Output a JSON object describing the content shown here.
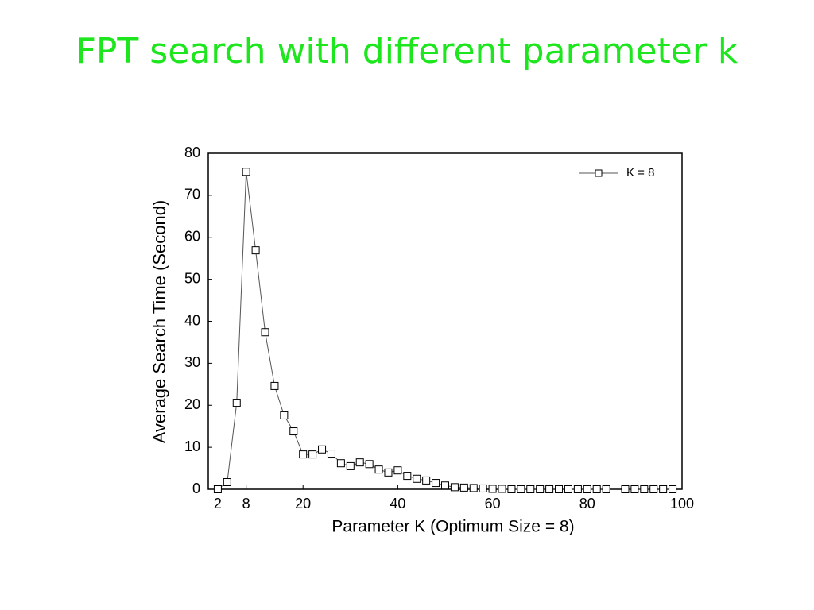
{
  "chart_data": {
    "type": "line",
    "title": "FPT search with different parameter k",
    "xlabel": "Parameter K (Optimum Size = 8)",
    "ylabel": "Average Search Time (Second)",
    "x": [
      2,
      4,
      6,
      8,
      10,
      12,
      14,
      16,
      18,
      20,
      22,
      24,
      26,
      28,
      30,
      32,
      34,
      36,
      38,
      40,
      42,
      44,
      46,
      48,
      50,
      52,
      54,
      56,
      58,
      60,
      62,
      64,
      66,
      68,
      70,
      72,
      74,
      76,
      78,
      80,
      82,
      84,
      86,
      88,
      90,
      92,
      94,
      96,
      98
    ],
    "series": [
      {
        "name": "K = 8",
        "color": "#000000",
        "values": [
          0,
          1.7,
          20.6,
          75.6,
          56.9,
          37.4,
          24.6,
          17.6,
          13.8,
          8.3,
          8.3,
          9.5,
          8.5,
          6.2,
          5.5,
          6.4,
          6.0,
          4.7,
          4.0,
          4.5,
          3.2,
          2.5,
          2.1,
          1.5,
          0.9,
          0.5,
          0.4,
          0.3,
          0.2,
          0.1,
          0.1,
          0,
          0,
          0,
          0,
          0,
          0,
          0,
          0,
          0,
          0,
          0,
          null,
          0,
          0,
          0,
          0,
          0,
          0
        ]
      }
    ],
    "xlim": [
      0,
      100
    ],
    "xticks": [
      2,
      8,
      20,
      40,
      60,
      80,
      100
    ],
    "ylim": [
      0,
      80
    ],
    "yticks": [
      0,
      10,
      20,
      30,
      40,
      50,
      60,
      70,
      80
    ],
    "grid": false,
    "legend": "upper right"
  }
}
